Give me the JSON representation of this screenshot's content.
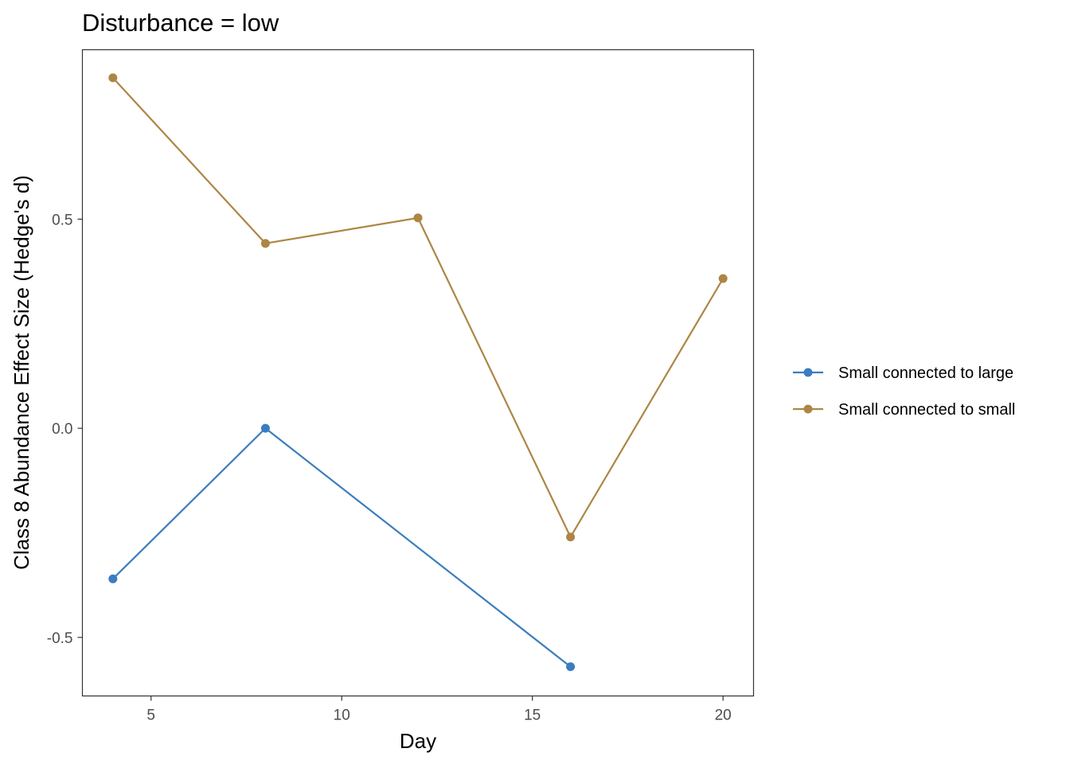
{
  "chart_data": {
    "type": "line",
    "title": "Disturbance = low",
    "xlabel": "Day",
    "ylabel": "Class 8 Abundance Effect Size (Hedge's d)",
    "xlim": [
      3.2,
      20.8
    ],
    "ylim": [
      -0.64,
      0.905
    ],
    "x_ticks": [
      5,
      10,
      15,
      20
    ],
    "x_tick_labels": [
      "5",
      "10",
      "15",
      "20"
    ],
    "y_ticks": [
      -0.5,
      0.0,
      0.5
    ],
    "y_tick_labels": [
      "-0.5",
      "0.0",
      "0.5"
    ],
    "grid": false,
    "legend_position": "right",
    "series": [
      {
        "name": "Small connected to large",
        "color": "#3b7dbf",
        "points": [
          [
            4,
            -0.36
          ],
          [
            8,
            0.0
          ],
          [
            16,
            -0.57
          ]
        ]
      },
      {
        "name": "Small connected to small",
        "color": "#ad8645",
        "points": [
          [
            4,
            0.838
          ],
          [
            8,
            0.442
          ],
          [
            12,
            0.503
          ],
          [
            16,
            -0.26
          ],
          [
            20,
            0.358
          ]
        ]
      }
    ]
  }
}
